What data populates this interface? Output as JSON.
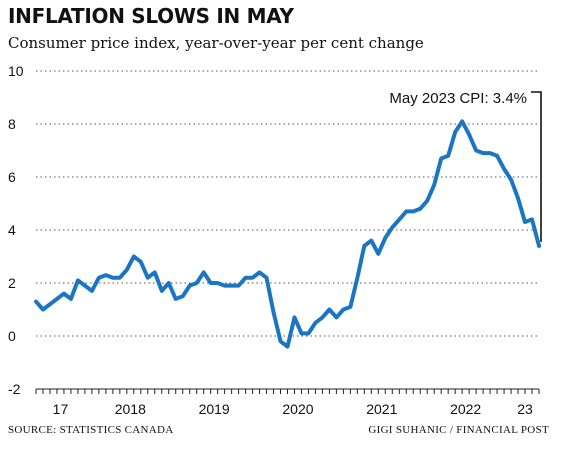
{
  "chart_data": {
    "type": "line",
    "title": "INFLATION SLOWS IN MAY",
    "subtitle": "Consumer price index, year-over-year per cent change",
    "ylim": [
      -2,
      10
    ],
    "yticks": [
      -2,
      0,
      2,
      4,
      6,
      8,
      10
    ],
    "x_start": "2017-05",
    "x_end": "2023-05",
    "x_tick_labels": [
      {
        "label": "17",
        "year": 2017
      },
      {
        "label": "2018",
        "year": 2018
      },
      {
        "label": "2019",
        "year": 2019
      },
      {
        "label": "2020",
        "year": 2020
      },
      {
        "label": "2021",
        "year": 2021
      },
      {
        "label": "2022",
        "year": 2022
      },
      {
        "label": "23",
        "year": 2023
      }
    ],
    "grid": "horizontal-dotted",
    "color": "#1a76c2",
    "series": [
      {
        "values": [
          {
            "x": "2017-05",
            "y": 1.3
          },
          {
            "x": "2017-06",
            "y": 1.0
          },
          {
            "x": "2017-07",
            "y": 1.2
          },
          {
            "x": "2017-08",
            "y": 1.4
          },
          {
            "x": "2017-09",
            "y": 1.6
          },
          {
            "x": "2017-10",
            "y": 1.4
          },
          {
            "x": "2017-11",
            "y": 2.1
          },
          {
            "x": "2017-12",
            "y": 1.9
          },
          {
            "x": "2018-01",
            "y": 1.7
          },
          {
            "x": "2018-02",
            "y": 2.2
          },
          {
            "x": "2018-03",
            "y": 2.3
          },
          {
            "x": "2018-04",
            "y": 2.2
          },
          {
            "x": "2018-05",
            "y": 2.2
          },
          {
            "x": "2018-06",
            "y": 2.5
          },
          {
            "x": "2018-07",
            "y": 3.0
          },
          {
            "x": "2018-08",
            "y": 2.8
          },
          {
            "x": "2018-09",
            "y": 2.2
          },
          {
            "x": "2018-10",
            "y": 2.4
          },
          {
            "x": "2018-11",
            "y": 1.7
          },
          {
            "x": "2018-12",
            "y": 2.0
          },
          {
            "x": "2019-01",
            "y": 1.4
          },
          {
            "x": "2019-02",
            "y": 1.5
          },
          {
            "x": "2019-03",
            "y": 1.9
          },
          {
            "x": "2019-04",
            "y": 2.0
          },
          {
            "x": "2019-05",
            "y": 2.4
          },
          {
            "x": "2019-06",
            "y": 2.0
          },
          {
            "x": "2019-07",
            "y": 2.0
          },
          {
            "x": "2019-08",
            "y": 1.9
          },
          {
            "x": "2019-09",
            "y": 1.9
          },
          {
            "x": "2019-10",
            "y": 1.9
          },
          {
            "x": "2019-11",
            "y": 2.2
          },
          {
            "x": "2019-12",
            "y": 2.2
          },
          {
            "x": "2020-01",
            "y": 2.4
          },
          {
            "x": "2020-02",
            "y": 2.2
          },
          {
            "x": "2020-03",
            "y": 0.9
          },
          {
            "x": "2020-04",
            "y": -0.2
          },
          {
            "x": "2020-05",
            "y": -0.4
          },
          {
            "x": "2020-06",
            "y": 0.7
          },
          {
            "x": "2020-07",
            "y": 0.1
          },
          {
            "x": "2020-08",
            "y": 0.1
          },
          {
            "x": "2020-09",
            "y": 0.5
          },
          {
            "x": "2020-10",
            "y": 0.7
          },
          {
            "x": "2020-11",
            "y": 1.0
          },
          {
            "x": "2020-12",
            "y": 0.7
          },
          {
            "x": "2021-01",
            "y": 1.0
          },
          {
            "x": "2021-02",
            "y": 1.1
          },
          {
            "x": "2021-03",
            "y": 2.2
          },
          {
            "x": "2021-04",
            "y": 3.4
          },
          {
            "x": "2021-05",
            "y": 3.6
          },
          {
            "x": "2021-06",
            "y": 3.1
          },
          {
            "x": "2021-07",
            "y": 3.7
          },
          {
            "x": "2021-08",
            "y": 4.1
          },
          {
            "x": "2021-09",
            "y": 4.4
          },
          {
            "x": "2021-10",
            "y": 4.7
          },
          {
            "x": "2021-11",
            "y": 4.7
          },
          {
            "x": "2021-12",
            "y": 4.8
          },
          {
            "x": "2022-01",
            "y": 5.1
          },
          {
            "x": "2022-02",
            "y": 5.7
          },
          {
            "x": "2022-03",
            "y": 6.7
          },
          {
            "x": "2022-04",
            "y": 6.8
          },
          {
            "x": "2022-05",
            "y": 7.7
          },
          {
            "x": "2022-06",
            "y": 8.1
          },
          {
            "x": "2022-07",
            "y": 7.6
          },
          {
            "x": "2022-08",
            "y": 7.0
          },
          {
            "x": "2022-09",
            "y": 6.9
          },
          {
            "x": "2022-10",
            "y": 6.9
          },
          {
            "x": "2022-11",
            "y": 6.8
          },
          {
            "x": "2022-12",
            "y": 6.3
          },
          {
            "x": "2023-01",
            "y": 5.9
          },
          {
            "x": "2023-02",
            "y": 5.2
          },
          {
            "x": "2023-03",
            "y": 4.3
          },
          {
            "x": "2023-04",
            "y": 4.4
          },
          {
            "x": "2023-05",
            "y": 3.4
          }
        ]
      }
    ],
    "annotation": {
      "text": "May 2023 CPI: 3.4%",
      "x": "2023-05",
      "y": 3.4
    }
  },
  "footer": {
    "source": "SOURCE: STATISTICS CANADA",
    "credit": "GIGI SUHANIC / FINANCIAL POST"
  }
}
